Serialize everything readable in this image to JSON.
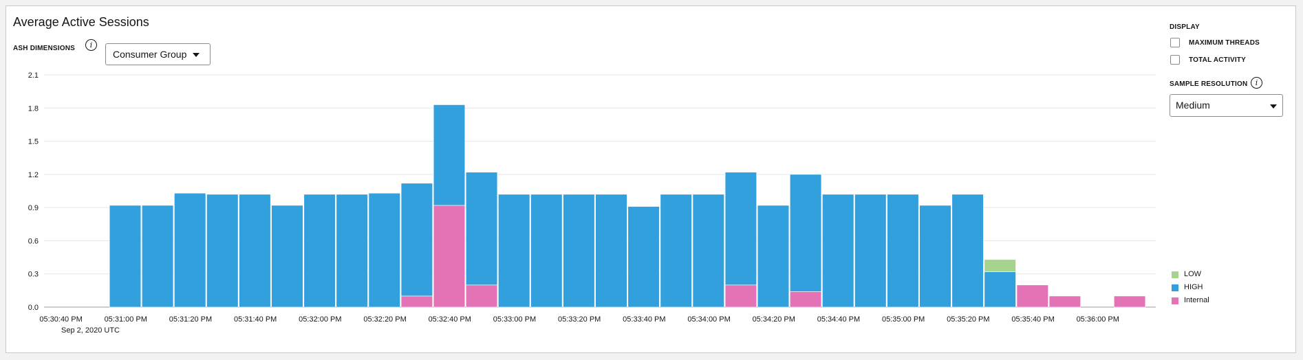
{
  "title": "Average Active Sessions",
  "ash_dimensions": {
    "label": "ASH DIMENSIONS",
    "selected": "Consumer Group"
  },
  "display": {
    "heading": "DISPLAY",
    "options": [
      {
        "label": "MAXIMUM THREADS",
        "checked": false
      },
      {
        "label": "TOTAL ACTIVITY",
        "checked": false
      }
    ]
  },
  "sample_resolution": {
    "label": "SAMPLE RESOLUTION",
    "selected": "Medium"
  },
  "icons": {
    "info": "info-icon",
    "dropdown": "chevron-down-icon"
  },
  "date_label": "Sep 2, 2020 UTC",
  "chart_data": {
    "type": "bar",
    "stacked": true,
    "categories": [
      "05:30:40 PM",
      "05:30:50 PM",
      "05:31:00 PM",
      "05:31:10 PM",
      "05:31:20 PM",
      "05:31:30 PM",
      "05:31:40 PM",
      "05:31:50 PM",
      "05:32:00 PM",
      "05:32:10 PM",
      "05:32:20 PM",
      "05:32:30 PM",
      "05:32:40 PM",
      "05:32:50 PM",
      "05:33:00 PM",
      "05:33:10 PM",
      "05:33:20 PM",
      "05:33:30 PM",
      "05:33:40 PM",
      "05:33:50 PM",
      "05:34:00 PM",
      "05:34:10 PM",
      "05:34:20 PM",
      "05:34:30 PM",
      "05:34:40 PM",
      "05:34:50 PM",
      "05:35:00 PM",
      "05:35:10 PM",
      "05:35:20 PM",
      "05:35:30 PM",
      "05:35:40 PM",
      "05:35:50 PM",
      "05:36:00 PM",
      "05:36:10 PM"
    ],
    "x_tick_labels": [
      "05:30:40 PM",
      "05:31:00 PM",
      "05:31:20 PM",
      "05:31:40 PM",
      "05:32:00 PM",
      "05:32:20 PM",
      "05:32:40 PM",
      "05:33:00 PM",
      "05:33:20 PM",
      "05:33:40 PM",
      "05:34:00 PM",
      "05:34:20 PM",
      "05:34:40 PM",
      "05:35:00 PM",
      "05:35:20 PM",
      "05:35:40 PM",
      "05:36:00 PM"
    ],
    "series": [
      {
        "name": "Internal",
        "color": "#e373b5",
        "values": [
          0,
          0,
          0,
          0,
          0,
          0,
          0,
          0,
          0,
          0,
          0,
          0.1,
          0.92,
          0.2,
          0,
          0,
          0,
          0,
          0,
          0,
          0,
          0.2,
          0,
          0.14,
          0,
          0,
          0,
          0,
          0,
          0,
          0.2,
          0.1,
          0,
          0.1
        ]
      },
      {
        "name": "HIGH",
        "color": "#32a0dd",
        "values": [
          0,
          0,
          0.92,
          0.92,
          1.03,
          1.02,
          1.02,
          0.92,
          1.02,
          1.02,
          1.03,
          1.02,
          0.91,
          1.02,
          1.02,
          1.02,
          1.02,
          1.02,
          0.91,
          1.02,
          1.02,
          1.02,
          0.92,
          1.06,
          1.02,
          1.02,
          1.02,
          0.92,
          1.02,
          0.32,
          0,
          0,
          0,
          0
        ]
      },
      {
        "name": "LOW",
        "color": "#a6d38e",
        "values": [
          0,
          0,
          0,
          0,
          0,
          0,
          0,
          0,
          0,
          0,
          0,
          0,
          0,
          0,
          0,
          0,
          0,
          0,
          0,
          0,
          0,
          0,
          0,
          0,
          0,
          0,
          0,
          0,
          0,
          0.11,
          0,
          0,
          0,
          0
        ]
      }
    ],
    "y_ticks": [
      "0.0",
      "0.3",
      "0.6",
      "0.9",
      "1.2",
      "1.5",
      "1.8",
      "2.1"
    ],
    "ylim": [
      0,
      2.1
    ],
    "grid": true,
    "legend_position": "right-bottom"
  }
}
